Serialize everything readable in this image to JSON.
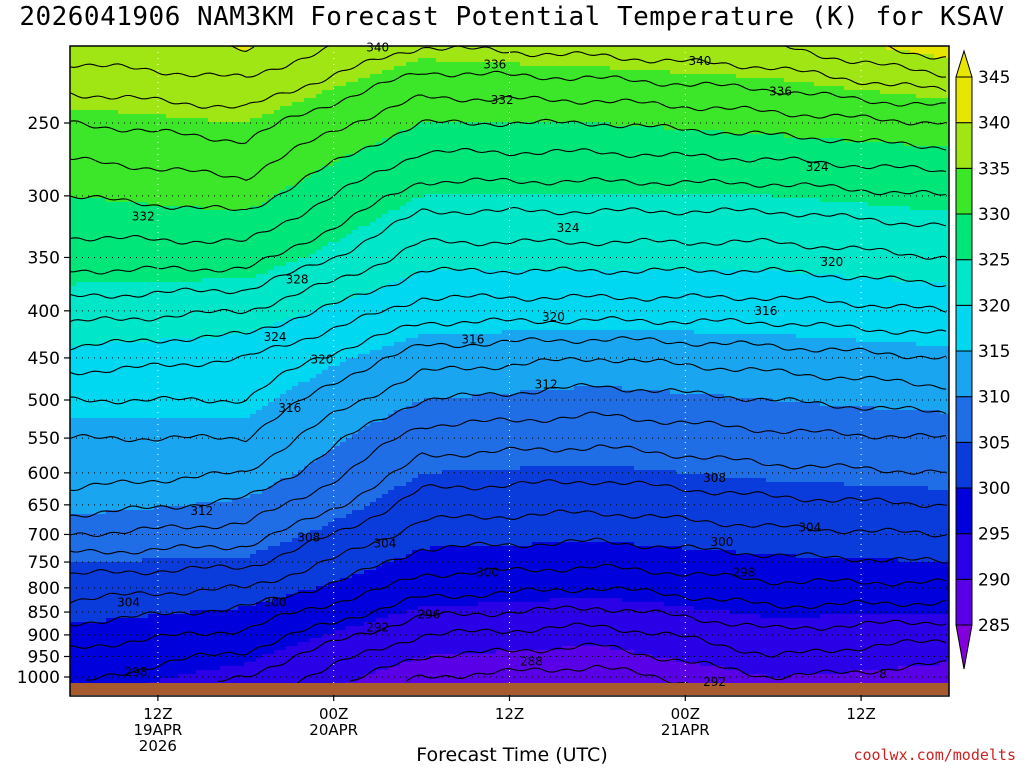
{
  "title": "2026041906 NAM3KM Forecast Potential Temperature (K) for KSAV",
  "credit": "coolwx.com/modelts",
  "chart_data": {
    "type": "heatmap",
    "title": "2026041906 NAM3KM Forecast Potential Temperature (K) for KSAV",
    "xlabel": "Forecast Time (UTC)",
    "ylabel": "",
    "x_range_hours": [
      0,
      60
    ],
    "y_range_hpa": [
      1000,
      200
    ],
    "y_scale": "log-pressure",
    "grid": true,
    "y_ticks": [
      250,
      300,
      350,
      400,
      450,
      500,
      550,
      600,
      650,
      700,
      750,
      800,
      850,
      900,
      950,
      1000
    ],
    "x_ticks": [
      {
        "hour": 6,
        "lines": [
          "12Z",
          "19APR",
          "2026"
        ]
      },
      {
        "hour": 18,
        "lines": [
          "00Z",
          "20APR"
        ]
      },
      {
        "hour": 30,
        "lines": [
          "12Z"
        ]
      },
      {
        "hour": 42,
        "lines": [
          "00Z",
          "21APR"
        ]
      },
      {
        "hour": 54,
        "lines": [
          "12Z"
        ]
      }
    ],
    "colorbar": {
      "levels": [
        285,
        290,
        295,
        300,
        305,
        310,
        315,
        320,
        325,
        330,
        335,
        340,
        345
      ],
      "colors": [
        "#8200dc",
        "#5a00e6",
        "#2a00e6",
        "#0000dc",
        "#0a3cdc",
        "#1f6ee6",
        "#19a5f0",
        "#00d7f0",
        "#00e6c8",
        "#00e678",
        "#3ce628",
        "#a0e614",
        "#e6e600"
      ]
    },
    "theta_profile_by_hour": [
      {
        "hour": 0,
        "p": [
          1000,
          950,
          900,
          850,
          800,
          750,
          700,
          650,
          600,
          550,
          500,
          450,
          400,
          350,
          300,
          250,
          200
        ],
        "theta": [
          296.5,
          297.5,
          299,
          301,
          303,
          305,
          308,
          311,
          313,
          314,
          316,
          319,
          323,
          327,
          330,
          334,
          340
        ]
      },
      {
        "hour": 12,
        "p": [
          1000,
          950,
          900,
          850,
          800,
          750,
          700,
          650,
          600,
          550,
          500,
          450,
          400,
          350,
          300,
          250,
          200
        ],
        "theta": [
          294,
          295.5,
          297.5,
          299.5,
          302,
          304.5,
          307,
          309.5,
          312,
          314,
          316,
          318,
          322,
          327,
          331,
          335,
          341
        ]
      },
      {
        "hour": 24,
        "p": [
          1000,
          950,
          900,
          850,
          800,
          750,
          700,
          650,
          600,
          550,
          500,
          450,
          400,
          350,
          300,
          250,
          200
        ],
        "theta": [
          288,
          290,
          292,
          294.5,
          297,
          299,
          301,
          303,
          305,
          307,
          310,
          313,
          317,
          321,
          325,
          330,
          337
        ]
      },
      {
        "hour": 36,
        "p": [
          1000,
          950,
          900,
          850,
          800,
          750,
          700,
          650,
          600,
          550,
          500,
          450,
          400,
          350,
          300,
          250,
          200
        ],
        "theta": [
          287,
          289,
          291,
          293.5,
          296,
          298.5,
          300.5,
          302.5,
          304.5,
          306.5,
          309,
          312,
          317,
          321,
          325,
          330,
          338
        ]
      },
      {
        "hour": 48,
        "p": [
          1000,
          950,
          900,
          850,
          800,
          750,
          700,
          650,
          600,
          550,
          500,
          450,
          400,
          350,
          300,
          250,
          200
        ],
        "theta": [
          290,
          292,
          293.5,
          295.5,
          297.5,
          299.5,
          301.5,
          303.5,
          305.5,
          307.5,
          310,
          313,
          317,
          321,
          325,
          331,
          339
        ]
      },
      {
        "hour": 60,
        "p": [
          1000,
          950,
          900,
          850,
          800,
          750,
          700,
          650,
          600,
          550,
          500,
          450,
          400,
          350,
          300,
          250,
          200
        ],
        "theta": [
          289,
          290.5,
          292.5,
          295,
          297.5,
          300,
          302,
          304,
          306,
          308,
          311,
          314,
          318,
          322,
          326,
          332,
          343
        ]
      }
    ],
    "contour_labels": [
      {
        "value": "340",
        "hour": 21,
        "p": 207
      },
      {
        "value": "336",
        "hour": 29,
        "p": 216
      },
      {
        "value": "340",
        "hour": 43,
        "p": 214
      },
      {
        "value": "336",
        "hour": 48.5,
        "p": 231
      },
      {
        "value": "332",
        "hour": 29.5,
        "p": 236
      },
      {
        "value": "324",
        "hour": 51,
        "p": 279
      },
      {
        "value": "332",
        "hour": 5,
        "p": 316
      },
      {
        "value": "324",
        "hour": 34,
        "p": 325
      },
      {
        "value": "320",
        "hour": 52,
        "p": 354
      },
      {
        "value": "328",
        "hour": 15.5,
        "p": 370
      },
      {
        "value": "316",
        "hour": 47.5,
        "p": 400
      },
      {
        "value": "320",
        "hour": 33,
        "p": 406
      },
      {
        "value": "324",
        "hour": 14,
        "p": 427
      },
      {
        "value": "316",
        "hour": 27.5,
        "p": 430
      },
      {
        "value": "320",
        "hour": 17.2,
        "p": 452
      },
      {
        "value": "312",
        "hour": 32.5,
        "p": 481
      },
      {
        "value": "316",
        "hour": 15,
        "p": 510
      },
      {
        "value": "308",
        "hour": 44,
        "p": 608
      },
      {
        "value": "312",
        "hour": 9,
        "p": 660
      },
      {
        "value": "304",
        "hour": 50.5,
        "p": 688
      },
      {
        "value": "308",
        "hour": 16.3,
        "p": 705
      },
      {
        "value": "304",
        "hour": 21.5,
        "p": 716
      },
      {
        "value": "300",
        "hour": 44.5,
        "p": 713
      },
      {
        "value": "300",
        "hour": 28.5,
        "p": 770
      },
      {
        "value": "298",
        "hour": 46,
        "p": 770
      },
      {
        "value": "304",
        "hour": 4,
        "p": 830
      },
      {
        "value": "300",
        "hour": 14,
        "p": 830
      },
      {
        "value": "296",
        "hour": 24.5,
        "p": 855
      },
      {
        "value": "292",
        "hour": 21,
        "p": 883
      },
      {
        "value": "288",
        "hour": 31.5,
        "p": 962
      },
      {
        "value": "298",
        "hour": 4.5,
        "p": 987
      },
      {
        "value": "292",
        "hour": 44,
        "p": 1012
      },
      {
        "value": "8",
        "hour": 55.5,
        "p": 993
      }
    ]
  }
}
